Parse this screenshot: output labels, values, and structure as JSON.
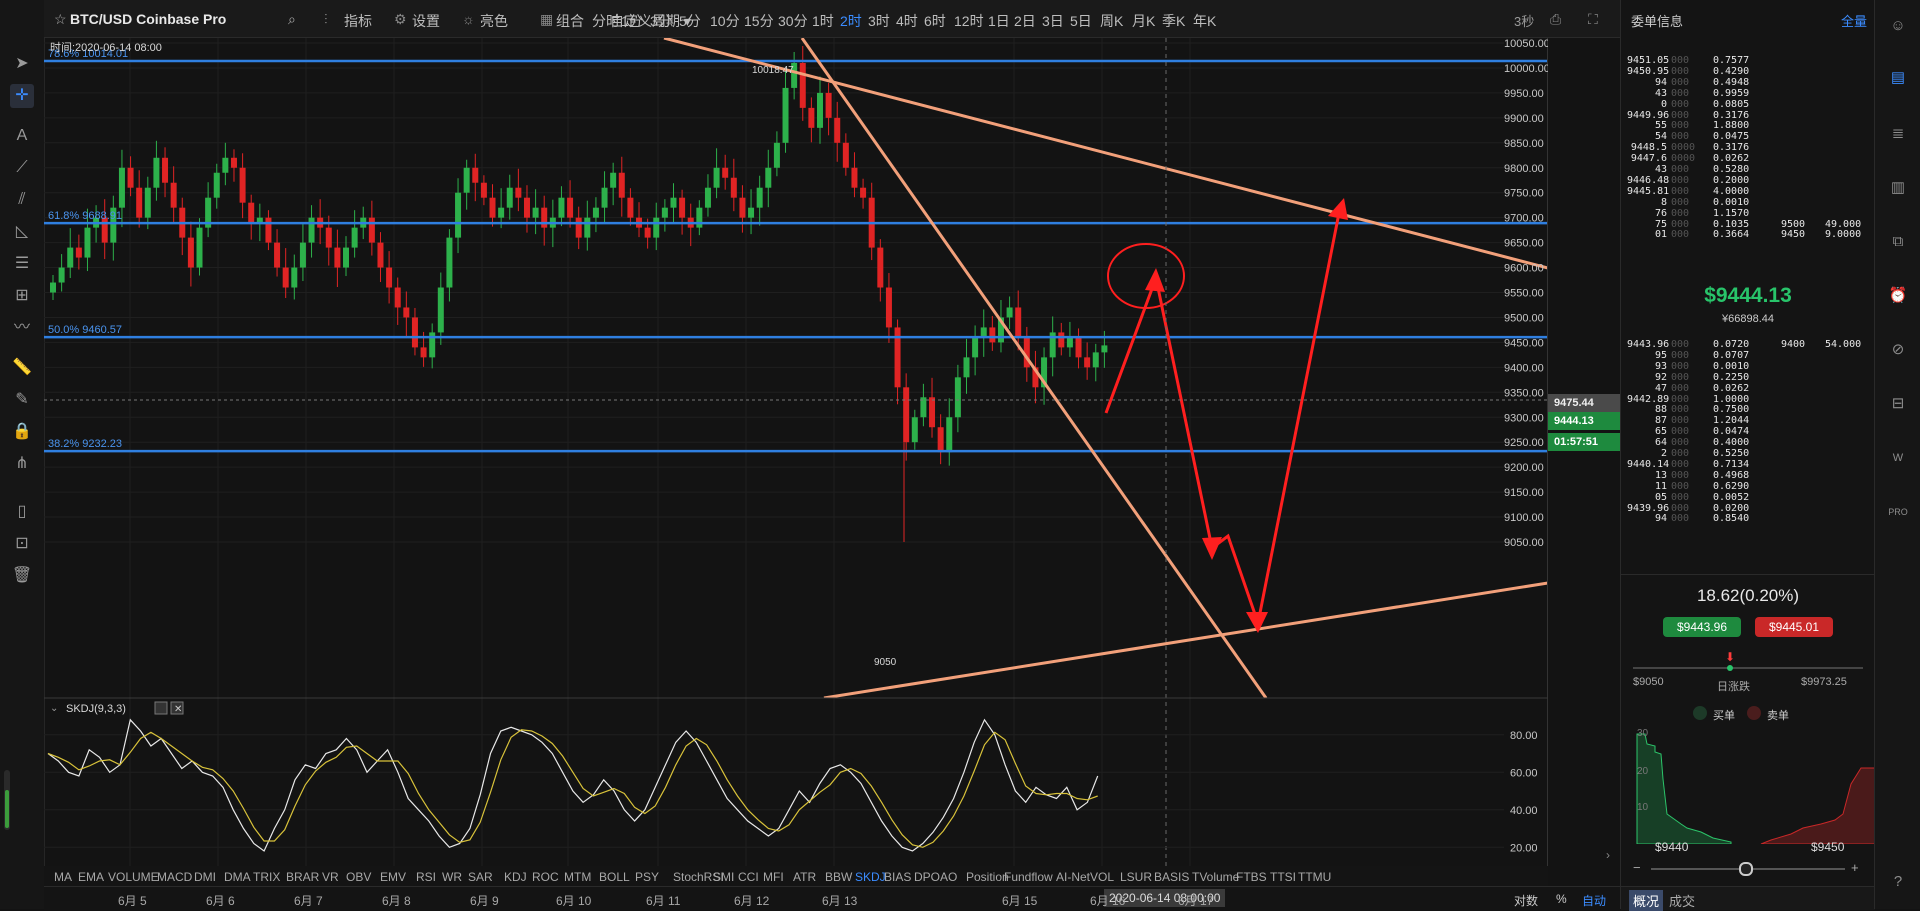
{
  "header": {
    "symbol": "BTC/USD Coinbase Pro",
    "toolbar": [
      "指标",
      "设置",
      "亮色",
      "组合"
    ],
    "custom_period": "自定义周期",
    "periods": [
      "分时",
      "1分",
      "3分",
      "5分",
      "10分",
      "15分",
      "30分",
      "1时",
      "2时",
      "3时",
      "4时",
      "6时",
      "12时",
      "1日",
      "2日",
      "3日",
      "5日",
      "周K",
      "月K",
      "季K",
      "年K"
    ],
    "active_period": "2时",
    "refresh": "3秒"
  },
  "chart": {
    "time_label": "时间:2020-06-14 08:00",
    "fib_levels": [
      {
        "label": "78.6% 10014.01",
        "price": 10014.01
      },
      {
        "label": "61.8% 9688.91",
        "price": 9688.91
      },
      {
        "label": "50.0% 9460.57",
        "price": 9460.57
      },
      {
        "label": "38.2% 9232.23",
        "price": 9232.23
      }
    ],
    "high_label": "10018.47",
    "low_label": "9050",
    "price_axis": [
      "10050.00",
      "10000.00",
      "9950.00",
      "9900.00",
      "9850.00",
      "9800.00",
      "9750.00",
      "9700.00",
      "9650.00",
      "9600.00",
      "9550.00",
      "9500.00",
      "9450.00",
      "9400.00",
      "9350.00",
      "9300.00",
      "9250.00",
      "9200.00",
      "9150.00",
      "9100.00",
      "9050.00"
    ],
    "tag_hline": "9475.44",
    "tag_last": "9444.13",
    "tag_countdown": "01:57:51",
    "crosshair_date": "2020-06-14 08:00:00",
    "dates": [
      "6月 5",
      "6月 6",
      "6月 7",
      "6月 8",
      "6月 9",
      "6月 10",
      "6月 11",
      "6月 12",
      "6月 13",
      "6月 15",
      "6月 16",
      "6月 17"
    ],
    "bottom_right": [
      "对数",
      "%",
      "自动"
    ]
  },
  "indicator": {
    "name": "SKDJ(9,3,3)",
    "axis": [
      "80.00",
      "60.00",
      "40.00",
      "20.00"
    ],
    "tabs": [
      "MA",
      "EMA",
      "VOLUME",
      "MACD",
      "DMI",
      "DMA",
      "TRIX",
      "BRAR",
      "VR",
      "OBV",
      "EMV",
      "RSI",
      "WR",
      "SAR",
      "KDJ",
      "ROC",
      "MTM",
      "BOLL",
      "PSY",
      "StochRSI",
      "SMI",
      "CCI",
      "MFI",
      "ATR",
      "BBW",
      "SKDJ",
      "BIAS",
      "DPO",
      "AO",
      "Position",
      "Fundflow",
      "AI-NetVOL",
      "LSUR",
      "BASIS",
      "TVolume",
      "FTBS",
      "TTSI",
      "TTMU"
    ],
    "active_tab": "SKDJ"
  },
  "orderbook": {
    "title": "委单信息",
    "full": "全量",
    "asks": [
      [
        "9451.05",
        "000",
        "0.7577",
        "",
        ""
      ],
      [
        "9450.95",
        "000",
        "0.4290",
        "",
        ""
      ],
      [
        "94",
        "000",
        "0.4948",
        "",
        ""
      ],
      [
        "43",
        "000",
        "0.9959",
        "",
        ""
      ],
      [
        "0",
        "000",
        "0.0805",
        "",
        ""
      ],
      [
        "9449.96",
        "000",
        "0.3176",
        "",
        ""
      ],
      [
        "55",
        "000",
        "1.8800",
        "",
        ""
      ],
      [
        "54",
        "000",
        "0.0475",
        "",
        ""
      ],
      [
        "9448.5",
        "0000",
        "0.3176",
        "",
        ""
      ],
      [
        "9447.6",
        "0000",
        "0.0262",
        "",
        ""
      ],
      [
        "43",
        "000",
        "0.5280",
        "",
        ""
      ],
      [
        "9446.48",
        "000",
        "0.2000",
        "",
        ""
      ],
      [
        "9445.81",
        "000",
        "4.0000",
        "",
        ""
      ],
      [
        "8",
        "000",
        "0.0010",
        "",
        ""
      ],
      [
        "76",
        "000",
        "1.1570",
        "",
        ""
      ],
      [
        "75",
        "000",
        "0.1035",
        "9500",
        "49.000"
      ],
      [
        "01",
        "000",
        "0.3664",
        "9450",
        "9.0000"
      ]
    ],
    "last_price": "$9444.13",
    "last_cny": "¥66898.44",
    "bids": [
      [
        "9443.96",
        "000",
        "0.0720",
        "9400",
        "54.000"
      ],
      [
        "95",
        "000",
        "0.0707",
        "",
        ""
      ],
      [
        "93",
        "000",
        "0.0010",
        "",
        ""
      ],
      [
        "92",
        "000",
        "0.2250",
        "",
        ""
      ],
      [
        "47",
        "000",
        "0.0262",
        "",
        ""
      ],
      [
        "9442.89",
        "000",
        "1.0000",
        "",
        ""
      ],
      [
        "88",
        "000",
        "0.7500",
        "",
        ""
      ],
      [
        "87",
        "000",
        "1.2044",
        "",
        ""
      ],
      [
        "65",
        "000",
        "0.0474",
        "",
        ""
      ],
      [
        "64",
        "000",
        "0.4000",
        "",
        ""
      ],
      [
        "2",
        "000",
        "0.5250",
        "",
        ""
      ],
      [
        "9440.14",
        "000",
        "0.7134",
        "",
        ""
      ],
      [
        "13",
        "000",
        "0.4968",
        "",
        ""
      ],
      [
        "11",
        "000",
        "0.6290",
        "",
        ""
      ],
      [
        "05",
        "000",
        "0.0052",
        "",
        ""
      ],
      [
        "9439.96",
        "000",
        "0.0200",
        "",
        ""
      ],
      [
        "94",
        "000",
        "0.8540",
        "",
        ""
      ]
    ],
    "change": "18.62(0.20%)",
    "bid_btn": "$9443.96",
    "ask_btn": "$9445.01",
    "range_low": "$9050",
    "range_label": "日涨跌",
    "range_high": "$9973.25",
    "legend_buy": "买单",
    "legend_sell": "卖单",
    "depth_ticks": [
      "30",
      "20",
      "10"
    ],
    "depth_x_low": "$9440",
    "depth_x_high": "$9450",
    "tabs": [
      "概况",
      "成交"
    ]
  }
}
